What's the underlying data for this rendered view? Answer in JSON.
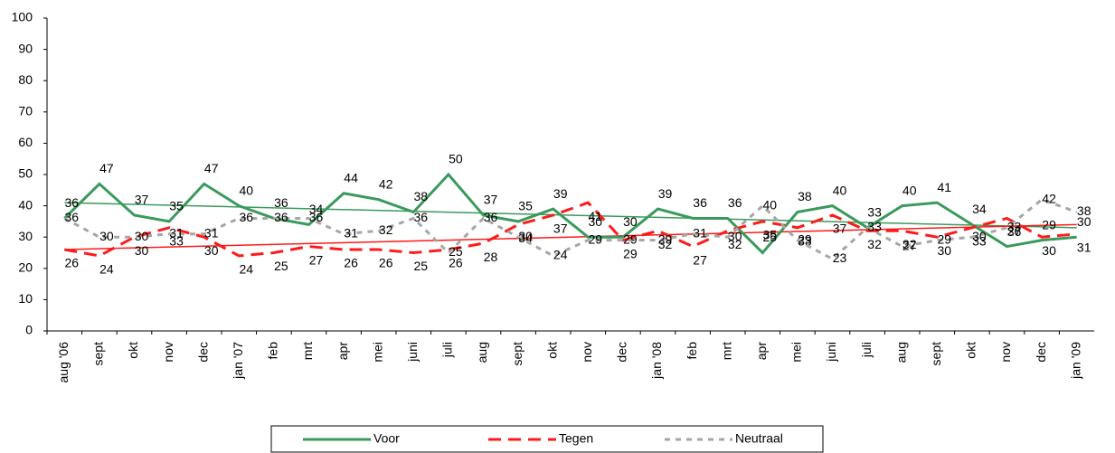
{
  "chart_data": {
    "type": "line",
    "categories": [
      "aug '06",
      "sept",
      "okt",
      "nov",
      "dec",
      "jan '07",
      "feb",
      "mrt",
      "apr",
      "mei",
      "juni",
      "juli",
      "aug",
      "sept",
      "okt",
      "nov",
      "dec",
      "jan '08",
      "feb",
      "mrt",
      "apr",
      "mei",
      "juni",
      "juli",
      "aug",
      "sept",
      "okt",
      "nov",
      "dec",
      "jan '09"
    ],
    "series": [
      {
        "name": "Voor",
        "color": "#3a9a5b",
        "dash": "solid",
        "values": [
          36,
          47,
          37,
          35,
          47,
          40,
          36,
          34,
          44,
          42,
          38,
          50,
          37,
          35,
          39,
          30,
          30,
          39,
          36,
          36,
          25,
          38,
          40,
          33,
          40,
          41,
          34,
          27,
          29,
          30
        ]
      },
      {
        "name": "Tegen",
        "color": "#ff1a1a",
        "dash": "dashed",
        "values": [
          26,
          24,
          30,
          33,
          30,
          24,
          25,
          27,
          26,
          26,
          25,
          26,
          28,
          34,
          37,
          41,
          29,
          32,
          27,
          32,
          35,
          33,
          37,
          32,
          32,
          30,
          33,
          36,
          30,
          31
        ]
      },
      {
        "name": "Neutraal",
        "color": "#a6a6a6",
        "dash": "dotted",
        "values": [
          36,
          30,
          30,
          31,
          31,
          36,
          36,
          36,
          31,
          32,
          36,
          25,
          36,
          30,
          24,
          29,
          29,
          29,
          31,
          30,
          40,
          29,
          23,
          33,
          27,
          29,
          30,
          33,
          42,
          38
        ]
      }
    ],
    "trendlines": [
      {
        "color": "#3a9a5b",
        "values": [
          41,
          33
        ]
      },
      {
        "color": "#ff1a1a",
        "values": [
          26,
          34
        ]
      }
    ],
    "ylim": [
      0,
      100
    ],
    "yticks": [
      0,
      10,
      20,
      30,
      40,
      50,
      60,
      70,
      80,
      90,
      100
    ],
    "grid": false,
    "legend": "bottom"
  }
}
